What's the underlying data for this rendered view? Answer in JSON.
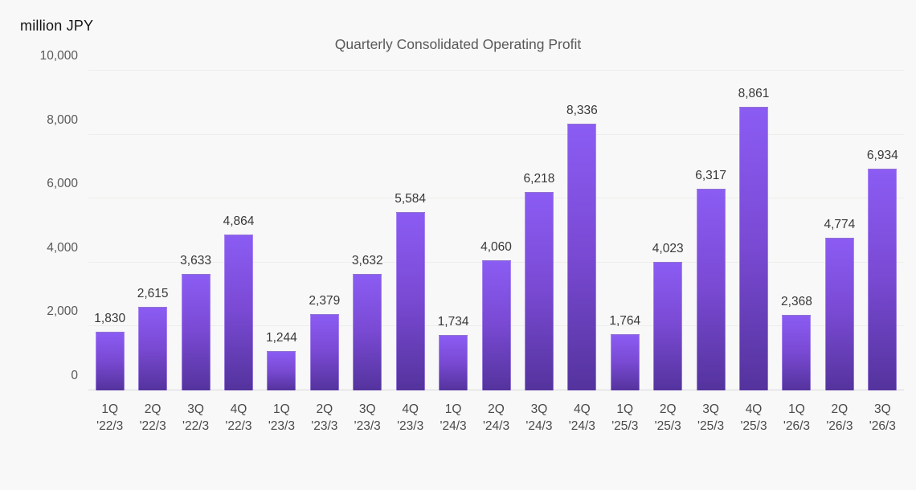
{
  "chart": {
    "unit_label": "million JPY",
    "title": "Quarterly Consolidated Operating Profit"
  },
  "chart_data": {
    "type": "bar",
    "title": "Quarterly Consolidated Operating Profit",
    "unit_label": "million JPY",
    "categories": [
      {
        "quarter": "1Q",
        "year": "'22/3"
      },
      {
        "quarter": "2Q",
        "year": "'22/3"
      },
      {
        "quarter": "3Q",
        "year": "'22/3"
      },
      {
        "quarter": "4Q",
        "year": "'22/3"
      },
      {
        "quarter": "1Q",
        "year": "'23/3"
      },
      {
        "quarter": "2Q",
        "year": "'23/3"
      },
      {
        "quarter": "3Q",
        "year": "'23/3"
      },
      {
        "quarter": "4Q",
        "year": "'23/3"
      },
      {
        "quarter": "1Q",
        "year": "'24/3"
      },
      {
        "quarter": "2Q",
        "year": "'24/3"
      },
      {
        "quarter": "3Q",
        "year": "'24/3"
      },
      {
        "quarter": "4Q",
        "year": "'24/3"
      },
      {
        "quarter": "1Q",
        "year": "'25/3"
      },
      {
        "quarter": "2Q",
        "year": "'25/3"
      },
      {
        "quarter": "3Q",
        "year": "'25/3"
      },
      {
        "quarter": "4Q",
        "year": "'25/3"
      },
      {
        "quarter": "1Q",
        "year": "'26/3"
      },
      {
        "quarter": "2Q",
        "year": "'26/3"
      },
      {
        "quarter": "3Q",
        "year": "'26/3"
      }
    ],
    "values": [
      1830,
      2615,
      3633,
      4864,
      1244,
      2379,
      3632,
      5584,
      1734,
      4060,
      6218,
      8336,
      1764,
      4023,
      6317,
      8861,
      2368,
      4774,
      6934
    ],
    "value_labels": [
      "1,830",
      "2,615",
      "3,633",
      "4,864",
      "1,244",
      "2,379",
      "3,632",
      "5,584",
      "1,734",
      "4,060",
      "6,218",
      "8,336",
      "1,764",
      "4,023",
      "6,317",
      "8,861",
      "2,368",
      "4,774",
      "6,934"
    ],
    "xlabel": "",
    "ylabel": "million JPY",
    "ylim": [
      0,
      10000
    ],
    "ytick_interval": 2000,
    "ytick_labels": [
      "0",
      "2,000",
      "4,000",
      "6,000",
      "8,000",
      "10,000"
    ],
    "grid": true,
    "legend": false,
    "colors": {
      "bar_gradient_top": "#8b5cf3",
      "bar_gradient_bottom": "#54339d",
      "background": "#f8f8f8",
      "gridline": "#ededec",
      "axis_line": "#d9d9d9",
      "title_text": "#595959",
      "value_text": "#383838",
      "tick_text": "#595959"
    }
  }
}
